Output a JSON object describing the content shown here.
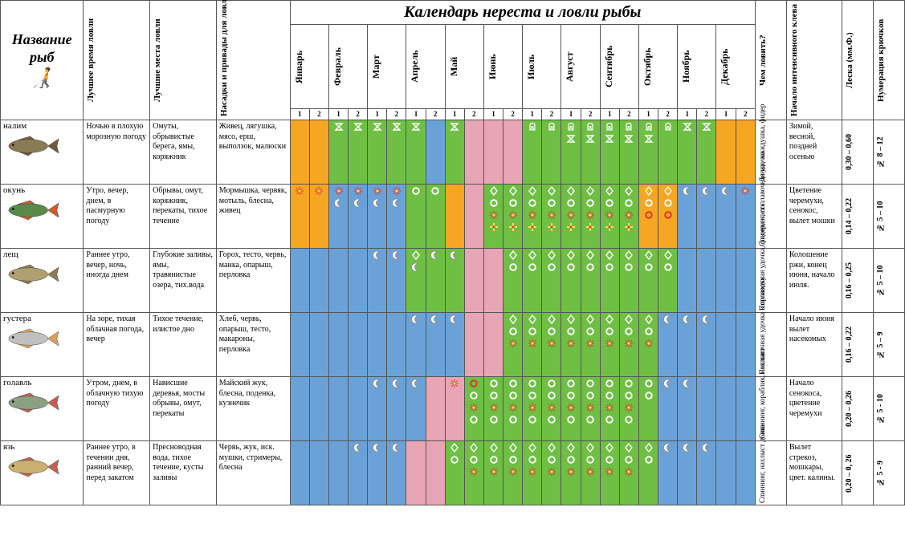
{
  "title": "Календарь нереста и ловли рыбы",
  "headers": {
    "name": "Название рыб",
    "best_time": "Лучшее время ловли",
    "best_place": "Лучшие места ловли",
    "bait": "Насадки и привады для ловли рыбы",
    "tackle": "Чем ловить?",
    "intensive": "Начало интенсивного клева",
    "line": "Леска (мм.Ф.)",
    "hooks": "Нумерация крючков"
  },
  "months": [
    "Январь",
    "Февраль",
    "Март",
    "Апрель",
    "Май",
    "Июнь",
    "Июль",
    "Август",
    "Сентябрь",
    "Октябрь",
    "Ноябрь",
    "Декабрь"
  ],
  "halves": [
    "1",
    "2"
  ],
  "colors": {
    "green": "#6fbf44",
    "blue": "#6aa2d8",
    "pink": "#e8a5b5",
    "orange": "#f5a623",
    "border": "#555555",
    "bg": "#ffffff"
  },
  "icons": {
    "sun": {
      "type": "sun",
      "stroke": "#d93030",
      "fill": "#ffde59"
    },
    "moon": {
      "type": "moon",
      "stroke": "#8a8a8a",
      "fill": "#ffffff"
    },
    "ring_w": {
      "type": "ring",
      "stroke": "#ffffff"
    },
    "ring_r": {
      "type": "ring",
      "stroke": "#d93030"
    },
    "diamond_w": {
      "type": "diamond",
      "stroke": "#ffffff"
    },
    "hourglass_w": {
      "type": "hourglass",
      "stroke": "#ffffff"
    },
    "tooth_w": {
      "type": "tooth",
      "stroke": "#ffffff"
    },
    "cross_y": {
      "type": "cross",
      "stroke": "#ffde59",
      "fill": "#d93030"
    }
  },
  "fish": [
    {
      "name": "налим",
      "body": "#8a7a55",
      "fin": "#6b5c3a",
      "best_time": "Ночью в плохую морозную погоду",
      "best_place": "Омуты, обрывистые берега, ямы, коряжник",
      "bait": "Живец, лягушка, мясо, ерш, выползок, малюски",
      "tackle": "Донка, закидушка, фидер",
      "intensive": "Зимой, весной, поздней осенью",
      "line": "0,30 – 0,60",
      "hooks": "№ 8 – 12",
      "calendar": [
        {
          "bg": "orange",
          "ic": []
        },
        {
          "bg": "orange",
          "ic": []
        },
        {
          "bg": "green",
          "ic": [
            "hourglass_w"
          ]
        },
        {
          "bg": "green",
          "ic": [
            "hourglass_w"
          ]
        },
        {
          "bg": "green",
          "ic": [
            "hourglass_w"
          ]
        },
        {
          "bg": "green",
          "ic": [
            "hourglass_w"
          ]
        },
        {
          "bg": "green",
          "ic": [
            "hourglass_w"
          ]
        },
        {
          "bg": "blue",
          "ic": []
        },
        {
          "bg": "green",
          "ic": [
            "hourglass_w"
          ]
        },
        {
          "bg": "pink",
          "ic": []
        },
        {
          "bg": "pink",
          "ic": []
        },
        {
          "bg": "pink",
          "ic": []
        },
        {
          "bg": "green",
          "ic": [
            "tooth_w"
          ]
        },
        {
          "bg": "green",
          "ic": [
            "tooth_w"
          ]
        },
        {
          "bg": "green",
          "ic": [
            "tooth_w",
            "hourglass_w"
          ]
        },
        {
          "bg": "green",
          "ic": [
            "tooth_w",
            "hourglass_w"
          ]
        },
        {
          "bg": "green",
          "ic": [
            "tooth_w",
            "hourglass_w"
          ]
        },
        {
          "bg": "green",
          "ic": [
            "tooth_w",
            "hourglass_w"
          ]
        },
        {
          "bg": "green",
          "ic": [
            "tooth_w",
            "hourglass_w"
          ]
        },
        {
          "bg": "green",
          "ic": [
            "tooth_w"
          ]
        },
        {
          "bg": "green",
          "ic": [
            "hourglass_w"
          ]
        },
        {
          "bg": "green",
          "ic": [
            "hourglass_w"
          ]
        },
        {
          "bg": "orange",
          "ic": []
        },
        {
          "bg": "orange",
          "ic": []
        }
      ]
    },
    {
      "name": "окунь",
      "body": "#5a8a4a",
      "fin": "#d05a30",
      "best_time": "Утро, вечер, днем, в пасмурную погоду",
      "best_place": "Обрывы, омут, коряжник, перекаты, тихое течение",
      "bait": "Мормышка, червяк, мотыль, блесна, живец",
      "tackle": "Спиннинг, поплавочная удочка",
      "intensive": "Цветение черемухи, сенокос, вылет мошки",
      "line": "0,14 – 0,22",
      "hooks": "№ 5 – 10",
      "calendar": [
        {
          "bg": "orange",
          "ic": [
            "sun"
          ]
        },
        {
          "bg": "orange",
          "ic": [
            "sun"
          ]
        },
        {
          "bg": "blue",
          "ic": [
            "sun",
            "moon"
          ]
        },
        {
          "bg": "blue",
          "ic": [
            "sun",
            "moon"
          ]
        },
        {
          "bg": "blue",
          "ic": [
            "sun",
            "moon"
          ]
        },
        {
          "bg": "blue",
          "ic": [
            "sun",
            "moon"
          ]
        },
        {
          "bg": "green",
          "ic": [
            "ring_w"
          ]
        },
        {
          "bg": "green",
          "ic": [
            "ring_w"
          ]
        },
        {
          "bg": "orange",
          "ic": []
        },
        {
          "bg": "pink",
          "ic": []
        },
        {
          "bg": "green",
          "ic": [
            "diamond_w",
            "ring_w",
            "sun",
            "cross_y"
          ]
        },
        {
          "bg": "green",
          "ic": [
            "diamond_w",
            "ring_w",
            "sun",
            "cross_y"
          ]
        },
        {
          "bg": "green",
          "ic": [
            "diamond_w",
            "ring_w",
            "sun",
            "cross_y"
          ]
        },
        {
          "bg": "green",
          "ic": [
            "diamond_w",
            "ring_w",
            "sun",
            "cross_y"
          ]
        },
        {
          "bg": "green",
          "ic": [
            "diamond_w",
            "ring_w",
            "sun",
            "cross_y"
          ]
        },
        {
          "bg": "green",
          "ic": [
            "diamond_w",
            "ring_w",
            "sun",
            "cross_y"
          ]
        },
        {
          "bg": "green",
          "ic": [
            "diamond_w",
            "ring_w",
            "sun",
            "cross_y"
          ]
        },
        {
          "bg": "green",
          "ic": [
            "diamond_w",
            "ring_w",
            "sun",
            "cross_y"
          ]
        },
        {
          "bg": "orange",
          "ic": [
            "diamond_w",
            "ring_w",
            "ring_r"
          ]
        },
        {
          "bg": "orange",
          "ic": [
            "diamond_w",
            "ring_w",
            "ring_r"
          ]
        },
        {
          "bg": "blue",
          "ic": [
            "moon"
          ]
        },
        {
          "bg": "blue",
          "ic": [
            "moon"
          ]
        },
        {
          "bg": "blue",
          "ic": [
            "moon"
          ]
        },
        {
          "bg": "blue",
          "ic": [
            "sun"
          ]
        }
      ]
    },
    {
      "name": "лещ",
      "body": "#b0a070",
      "fin": "#8a7a55",
      "best_time": "Раннее утро, вечер, ночь, иногда днем",
      "best_place": "Глубокие заливы, ямы, травянистые озера, тих.вода",
      "bait": "Горох, тесто, червь, манка, опарыш, перловка",
      "tackle": "Поплавочная удочка, фидер,снасть",
      "intensive": "Колошение ржи, конец июня, начало июля.",
      "line": "0,16 – 0,25",
      "hooks": "№ 5 – 10",
      "calendar": [
        {
          "bg": "blue",
          "ic": []
        },
        {
          "bg": "blue",
          "ic": []
        },
        {
          "bg": "blue",
          "ic": []
        },
        {
          "bg": "blue",
          "ic": []
        },
        {
          "bg": "blue",
          "ic": [
            "moon"
          ]
        },
        {
          "bg": "blue",
          "ic": [
            "moon"
          ]
        },
        {
          "bg": "green",
          "ic": [
            "diamond_w",
            "moon"
          ]
        },
        {
          "bg": "green",
          "ic": [
            "moon"
          ]
        },
        {
          "bg": "green",
          "ic": [
            "moon"
          ]
        },
        {
          "bg": "pink",
          "ic": []
        },
        {
          "bg": "pink",
          "ic": []
        },
        {
          "bg": "green",
          "ic": [
            "diamond_w",
            "ring_w"
          ]
        },
        {
          "bg": "green",
          "ic": [
            "diamond_w",
            "ring_w"
          ]
        },
        {
          "bg": "green",
          "ic": [
            "diamond_w",
            "ring_w"
          ]
        },
        {
          "bg": "green",
          "ic": [
            "diamond_w",
            "ring_w"
          ]
        },
        {
          "bg": "green",
          "ic": [
            "diamond_w",
            "ring_w"
          ]
        },
        {
          "bg": "green",
          "ic": [
            "diamond_w",
            "ring_w"
          ]
        },
        {
          "bg": "green",
          "ic": [
            "diamond_w",
            "ring_w"
          ]
        },
        {
          "bg": "green",
          "ic": [
            "diamond_w",
            "ring_w"
          ]
        },
        {
          "bg": "green",
          "ic": [
            "diamond_w",
            "ring_w"
          ]
        },
        {
          "bg": "blue",
          "ic": []
        },
        {
          "bg": "blue",
          "ic": []
        },
        {
          "bg": "blue",
          "ic": []
        },
        {
          "bg": "blue",
          "ic": []
        }
      ]
    },
    {
      "name": "густера",
      "body": "#c0c0c0",
      "fin": "#d8a060",
      "best_time": "На зоре, тихая облачная погода, вечер",
      "best_place": "Тихое течение, илистое дно",
      "bait": "Хлеб, червь, опарыш, тесто, макароны, перловка",
      "tackle": "Поплавочная удочка в проводку",
      "intensive": "Начало июня вылет насекомых",
      "line": "0,16 – 0,22",
      "hooks": "№ 5 – 9",
      "calendar": [
        {
          "bg": "blue",
          "ic": []
        },
        {
          "bg": "blue",
          "ic": []
        },
        {
          "bg": "blue",
          "ic": []
        },
        {
          "bg": "blue",
          "ic": []
        },
        {
          "bg": "blue",
          "ic": []
        },
        {
          "bg": "blue",
          "ic": []
        },
        {
          "bg": "blue",
          "ic": [
            "moon"
          ]
        },
        {
          "bg": "blue",
          "ic": [
            "moon"
          ]
        },
        {
          "bg": "blue",
          "ic": [
            "moon"
          ]
        },
        {
          "bg": "pink",
          "ic": []
        },
        {
          "bg": "pink",
          "ic": []
        },
        {
          "bg": "green",
          "ic": [
            "diamond_w",
            "ring_w",
            "sun"
          ]
        },
        {
          "bg": "green",
          "ic": [
            "diamond_w",
            "ring_w",
            "sun"
          ]
        },
        {
          "bg": "green",
          "ic": [
            "diamond_w",
            "ring_w",
            "sun"
          ]
        },
        {
          "bg": "green",
          "ic": [
            "diamond_w",
            "ring_w",
            "sun"
          ]
        },
        {
          "bg": "green",
          "ic": [
            "diamond_w",
            "ring_w",
            "sun"
          ]
        },
        {
          "bg": "green",
          "ic": [
            "diamond_w",
            "ring_w",
            "sun"
          ]
        },
        {
          "bg": "green",
          "ic": [
            "diamond_w",
            "ring_w",
            "sun"
          ]
        },
        {
          "bg": "green",
          "ic": [
            "diamond_w",
            "ring_w",
            "sun"
          ]
        },
        {
          "bg": "blue",
          "ic": [
            "moon"
          ]
        },
        {
          "bg": "blue",
          "ic": [
            "moon"
          ]
        },
        {
          "bg": "blue",
          "ic": [
            "moon"
          ]
        },
        {
          "bg": "blue",
          "ic": []
        },
        {
          "bg": "blue",
          "ic": []
        }
      ]
    },
    {
      "name": "голавль",
      "body": "#8aa080",
      "fin": "#c06050",
      "best_time": "Утром, днем, в облачную тихую погоду",
      "best_place": "Нависшие деревья, мосты обрывы, омут, перекаты",
      "bait": "Майский жук, блесна, поденка, кузнечик",
      "tackle": "Спиннинг, кораблик, нахлыст",
      "intensive": "Начало сенокоса, цветение черемухи",
      "line": "0,20 – 0,26",
      "hooks": "№ 5 - 10",
      "calendar": [
        {
          "bg": "blue",
          "ic": []
        },
        {
          "bg": "blue",
          "ic": []
        },
        {
          "bg": "blue",
          "ic": []
        },
        {
          "bg": "blue",
          "ic": []
        },
        {
          "bg": "blue",
          "ic": [
            "moon"
          ]
        },
        {
          "bg": "blue",
          "ic": [
            "moon"
          ]
        },
        {
          "bg": "blue",
          "ic": [
            "moon"
          ]
        },
        {
          "bg": "pink",
          "ic": []
        },
        {
          "bg": "pink",
          "ic": [
            "sun"
          ]
        },
        {
          "bg": "green",
          "ic": [
            "ring_r",
            "ring_w",
            "sun",
            "ring_w"
          ]
        },
        {
          "bg": "green",
          "ic": [
            "ring_w",
            "ring_w",
            "sun",
            "ring_w"
          ]
        },
        {
          "bg": "green",
          "ic": [
            "ring_w",
            "ring_w",
            "sun",
            "ring_w"
          ]
        },
        {
          "bg": "green",
          "ic": [
            "ring_w",
            "ring_w",
            "sun",
            "ring_w"
          ]
        },
        {
          "bg": "green",
          "ic": [
            "ring_w",
            "ring_w",
            "sun",
            "ring_w"
          ]
        },
        {
          "bg": "green",
          "ic": [
            "ring_w",
            "ring_w",
            "sun",
            "ring_w"
          ]
        },
        {
          "bg": "green",
          "ic": [
            "ring_w",
            "ring_w",
            "sun",
            "ring_w"
          ]
        },
        {
          "bg": "green",
          "ic": [
            "ring_w",
            "ring_w",
            "sun",
            "ring_w"
          ]
        },
        {
          "bg": "green",
          "ic": [
            "ring_w",
            "ring_w",
            "sun",
            "ring_w"
          ]
        },
        {
          "bg": "green",
          "ic": [
            "ring_w",
            "ring_w"
          ]
        },
        {
          "bg": "blue",
          "ic": [
            "moon"
          ]
        },
        {
          "bg": "blue",
          "ic": [
            "moon"
          ]
        },
        {
          "bg": "blue",
          "ic": []
        },
        {
          "bg": "blue",
          "ic": []
        },
        {
          "bg": "blue",
          "ic": []
        }
      ]
    },
    {
      "name": "язь",
      "body": "#c8b070",
      "fin": "#c06050",
      "best_time": "Раннее утро, в течении дня, ранний вечер, перед закатом",
      "best_place": "Пресноводная вода, тихое течение, кусты заливы",
      "bait": "Червь, жук, иск. мушки, стримеры, блесна",
      "tackle": "Спиннинг, нахлыст донка",
      "intensive": "Вылет стрекоз, мошкары, цвет. калины.",
      "line": "0,20 – 0, 26",
      "hooks": "№ 5 - 9",
      "calendar": [
        {
          "bg": "blue",
          "ic": []
        },
        {
          "bg": "blue",
          "ic": []
        },
        {
          "bg": "blue",
          "ic": []
        },
        {
          "bg": "blue",
          "ic": [
            "moon"
          ]
        },
        {
          "bg": "blue",
          "ic": [
            "moon"
          ]
        },
        {
          "bg": "blue",
          "ic": [
            "moon"
          ]
        },
        {
          "bg": "pink",
          "ic": []
        },
        {
          "bg": "pink",
          "ic": []
        },
        {
          "bg": "green",
          "ic": [
            "diamond_w",
            "ring_w"
          ]
        },
        {
          "bg": "green",
          "ic": [
            "diamond_w",
            "ring_w",
            "sun"
          ]
        },
        {
          "bg": "green",
          "ic": [
            "diamond_w",
            "ring_w",
            "sun"
          ]
        },
        {
          "bg": "green",
          "ic": [
            "diamond_w",
            "ring_w",
            "sun"
          ]
        },
        {
          "bg": "green",
          "ic": [
            "diamond_w",
            "ring_w",
            "sun"
          ]
        },
        {
          "bg": "green",
          "ic": [
            "diamond_w",
            "ring_w",
            "sun"
          ]
        },
        {
          "bg": "green",
          "ic": [
            "diamond_w",
            "ring_w",
            "sun"
          ]
        },
        {
          "bg": "green",
          "ic": [
            "diamond_w",
            "ring_w",
            "sun"
          ]
        },
        {
          "bg": "green",
          "ic": [
            "diamond_w",
            "ring_w",
            "sun"
          ]
        },
        {
          "bg": "green",
          "ic": [
            "diamond_w",
            "ring_w",
            "sun"
          ]
        },
        {
          "bg": "green",
          "ic": [
            "diamond_w",
            "ring_w"
          ]
        },
        {
          "bg": "blue",
          "ic": [
            "moon"
          ]
        },
        {
          "bg": "blue",
          "ic": [
            "moon"
          ]
        },
        {
          "bg": "blue",
          "ic": [
            "moon"
          ]
        },
        {
          "bg": "blue",
          "ic": []
        },
        {
          "bg": "blue",
          "ic": []
        }
      ]
    }
  ]
}
